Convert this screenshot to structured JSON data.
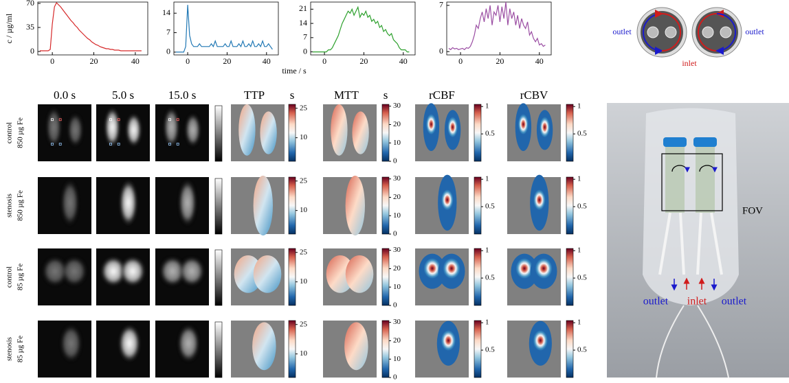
{
  "chart_data": [
    {
      "type": "line",
      "ylabel": "c / µg/ml",
      "color": "#d62728",
      "x": [
        -6,
        -5,
        -4,
        -3,
        -2,
        -1,
        0,
        1,
        2,
        3,
        4,
        5,
        6,
        7,
        8,
        9,
        10,
        11,
        12,
        13,
        14,
        15,
        16,
        17,
        18,
        19,
        20,
        21,
        22,
        23,
        24,
        25,
        26,
        27,
        28,
        29,
        30,
        31,
        32,
        33,
        34,
        35,
        36,
        37,
        38,
        39,
        40,
        41,
        42,
        43
      ],
      "values": [
        1,
        1,
        1,
        1,
        1,
        3,
        40,
        65,
        71,
        68,
        65,
        61,
        57,
        53,
        49,
        45,
        42,
        38,
        35,
        31,
        28,
        25,
        22,
        19,
        17,
        14,
        12,
        10,
        9,
        7,
        6,
        5,
        4,
        4,
        3,
        3,
        2,
        2,
        2,
        1,
        1,
        1,
        1,
        1,
        1,
        1,
        1,
        1,
        1,
        1
      ],
      "xlim": [
        -7,
        46
      ],
      "xticks": [
        0,
        20,
        40
      ],
      "ylim": [
        -5,
        72
      ],
      "yticks": [
        0,
        35,
        70
      ]
    },
    {
      "type": "line",
      "xlabel": "time / s",
      "color": "#1f77b4",
      "x": [
        -6,
        -5,
        -4,
        -3,
        -2,
        -1,
        0,
        1,
        2,
        3,
        4,
        5,
        6,
        7,
        8,
        9,
        10,
        11,
        12,
        13,
        14,
        15,
        16,
        17,
        18,
        19,
        20,
        21,
        22,
        23,
        24,
        25,
        26,
        27,
        28,
        29,
        30,
        31,
        32,
        33,
        34,
        35,
        36,
        37,
        38,
        39,
        40,
        41,
        42,
        43
      ],
      "values": [
        0,
        0,
        0,
        0,
        0,
        2,
        17,
        6,
        3,
        2,
        2,
        2,
        3,
        2,
        2,
        2,
        2,
        2,
        3,
        2,
        4,
        2,
        2,
        2,
        2,
        3,
        2,
        2,
        4,
        2,
        2,
        2,
        3,
        2,
        4,
        2,
        2,
        3,
        2,
        4,
        2,
        2,
        3,
        2,
        4,
        2,
        2,
        3,
        2,
        1
      ],
      "xlim": [
        -7,
        46
      ],
      "xticks": [
        0,
        20,
        40
      ],
      "ylim": [
        -1,
        18
      ],
      "yticks": [
        0,
        7,
        14
      ]
    },
    {
      "type": "line",
      "color": "#2ca02c",
      "x": [
        -6,
        -5,
        -4,
        -3,
        -2,
        -1,
        0,
        1,
        2,
        3,
        4,
        5,
        6,
        7,
        8,
        9,
        10,
        11,
        12,
        13,
        14,
        15,
        16,
        17,
        18,
        19,
        20,
        21,
        22,
        23,
        24,
        25,
        26,
        27,
        28,
        29,
        30,
        31,
        32,
        33,
        34,
        35,
        36,
        37,
        38,
        39,
        40,
        41,
        42,
        43
      ],
      "values": [
        0,
        0,
        0,
        0,
        0,
        0,
        0,
        0,
        1,
        1,
        2,
        4,
        6,
        8,
        11,
        14,
        16,
        18,
        20,
        19,
        21,
        18,
        20,
        22,
        17,
        19,
        18,
        20,
        17,
        18,
        15,
        16,
        14,
        15,
        12,
        13,
        10,
        11,
        9,
        8,
        9,
        6,
        5,
        4,
        2,
        1,
        1,
        1,
        0,
        0
      ],
      "xlim": [
        -7,
        46
      ],
      "xticks": [
        0,
        20,
        40
      ],
      "ylim": [
        -1.5,
        24.5
      ],
      "yticks": [
        0,
        7,
        14,
        21
      ]
    },
    {
      "type": "line",
      "color": "#9b4ea3",
      "x": [
        -6,
        -5,
        -4,
        -3,
        -2,
        -1,
        0,
        1,
        2,
        3,
        4,
        5,
        6,
        7,
        8,
        9,
        10,
        11,
        12,
        13,
        14,
        15,
        16,
        17,
        18,
        19,
        20,
        21,
        22,
        23,
        24,
        25,
        26,
        27,
        28,
        29,
        30,
        31,
        32,
        33,
        34,
        35,
        36,
        37,
        38,
        39,
        40,
        41,
        42,
        43
      ],
      "values": [
        0.5,
        0.3,
        0.6,
        0.4,
        0.5,
        0.3,
        0.4,
        0.5,
        0.3,
        0.6,
        0.5,
        0.8,
        1.5,
        2.5,
        4,
        3.5,
        5,
        6,
        4.5,
        6.5,
        5,
        7,
        4,
        6,
        5.5,
        7,
        4.5,
        6.8,
        5,
        7.5,
        4,
        6.5,
        5,
        6,
        4,
        5.5,
        3.5,
        5,
        4,
        3.5,
        4.5,
        2.5,
        3,
        2,
        1.5,
        2,
        1,
        1.2,
        0.8,
        1
      ],
      "xlim": [
        -7,
        46
      ],
      "xticks": [
        0,
        20,
        40
      ],
      "ylim": [
        -0.5,
        7.5
      ],
      "yticks": [
        0,
        7
      ]
    }
  ],
  "panel_grid": {
    "columns": [
      "0.0 s",
      "5.0 s",
      "15.0 s",
      "TTP",
      "MTT",
      "rCBF",
      "rCBV"
    ],
    "units": [
      "s",
      "s"
    ],
    "rows": [
      {
        "condition": "control",
        "dose": "850 µg Fe"
      },
      {
        "condition": "stenosis",
        "dose": "850 µg Fe"
      },
      {
        "condition": "control",
        "dose": "85 µg Fe"
      },
      {
        "condition": "stenosis",
        "dose": "85 µg Fe"
      }
    ],
    "colorbars": [
      {
        "lim": [
          -2,
          27
        ],
        "ticks": [
          10,
          25
        ]
      },
      {
        "lim": [
          0,
          31
        ],
        "ticks": [
          0,
          10,
          20,
          30
        ]
      },
      {
        "lim": [
          0,
          1.04
        ],
        "ticks": [
          0.5,
          1
        ]
      },
      {
        "lim": [
          0,
          1.04
        ],
        "ticks": [
          0.5,
          1
        ]
      }
    ]
  },
  "setup_diagram": {
    "labels": [
      "outlet",
      "outlet",
      "inlet"
    ]
  },
  "photo": {
    "fov": "FOV",
    "labels": [
      "outlet",
      "inlet",
      "outlet"
    ]
  }
}
